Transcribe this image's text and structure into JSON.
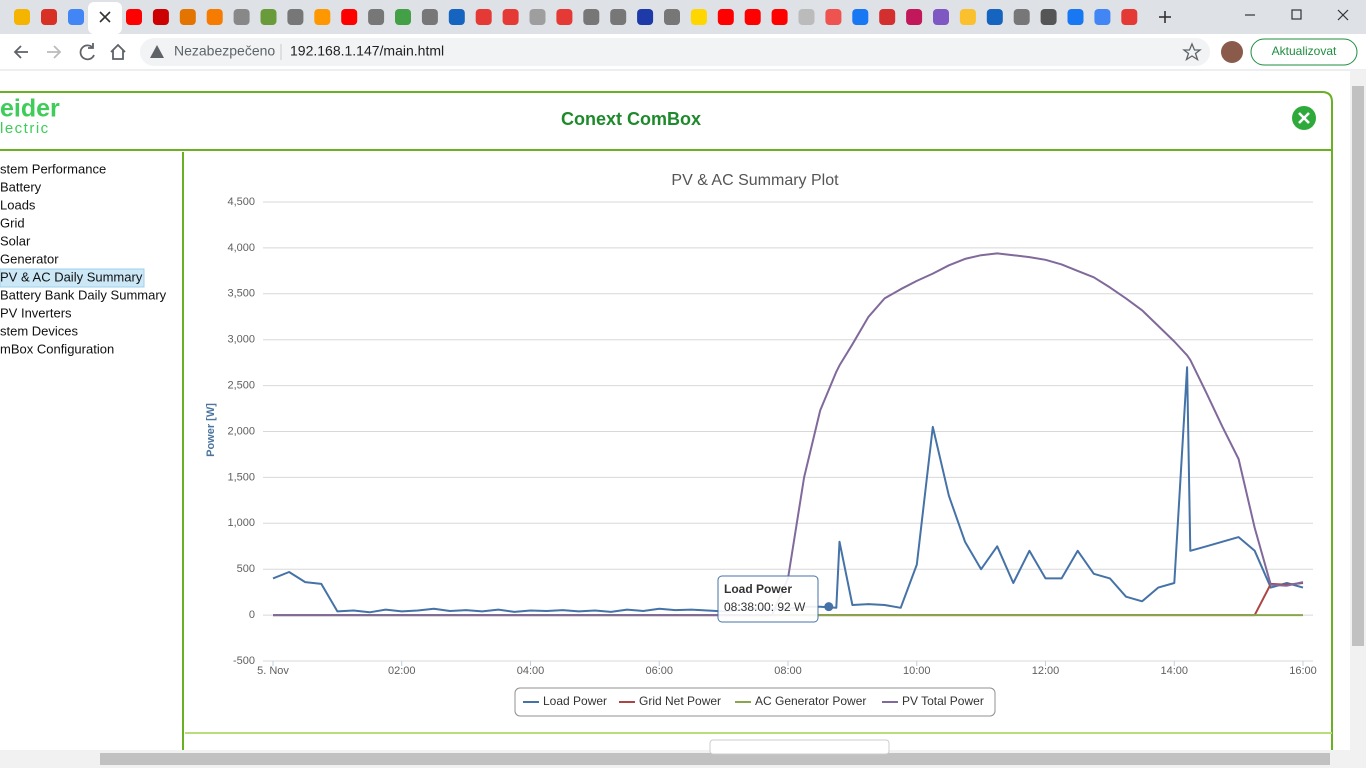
{
  "browser": {
    "security_label": "Nezabezpečeno",
    "url": "192.168.1.147/main.html",
    "update_button": "Aktualizovat"
  },
  "app": {
    "logo": [
      "eider",
      "lectric"
    ],
    "title": "Conext ComBox",
    "nav": [
      "stem Performance",
      "Battery",
      "Loads",
      "Grid",
      "Solar",
      "Generator",
      "PV & AC Daily Summary",
      "Battery Bank Daily Summary",
      "PV Inverters",
      "stem Devices",
      "mBox Configuration"
    ],
    "selected_nav": 6
  },
  "chart_data": {
    "type": "line",
    "title": "PV & AC Summary Plot",
    "y_label": "Power [W]",
    "x": [
      0,
      0.25,
      0.5,
      0.75,
      1,
      1.25,
      1.5,
      1.75,
      2,
      2.25,
      2.5,
      2.75,
      3,
      3.25,
      3.5,
      3.75,
      4,
      4.25,
      4.5,
      4.75,
      5,
      5.25,
      5.5,
      5.75,
      6,
      6.25,
      6.5,
      6.75,
      7,
      7.25,
      7.5,
      7.75,
      8,
      8.25,
      8.5,
      8.75,
      8.8,
      9,
      9.25,
      9.5,
      9.75,
      10,
      10.25,
      10.5,
      10.75,
      11,
      11.25,
      11.5,
      11.75,
      12,
      12.25,
      12.5,
      12.75,
      13,
      13.25,
      13.5,
      13.75,
      14,
      14.2,
      14.25,
      14.5,
      14.75,
      15,
      15.25,
      15.5,
      15.75,
      16
    ],
    "series": [
      {
        "name": "Load Power",
        "color": "#4572a7",
        "values": [
          400,
          470,
          360,
          340,
          40,
          50,
          30,
          60,
          40,
          50,
          70,
          45,
          55,
          40,
          60,
          35,
          50,
          45,
          55,
          40,
          50,
          35,
          60,
          45,
          70,
          55,
          60,
          50,
          40,
          55,
          70,
          60,
          70,
          90,
          92,
          80,
          800,
          110,
          120,
          110,
          80,
          550,
          2050,
          1300,
          800,
          500,
          750,
          350,
          700,
          400,
          400,
          700,
          450,
          400,
          200,
          150,
          300,
          350,
          2700,
          700,
          750,
          800,
          850,
          700,
          300,
          350,
          300
        ]
      },
      {
        "name": "Grid Net Power",
        "color": "#aa4643",
        "values": [
          0,
          0,
          0,
          0,
          0,
          0,
          0,
          0,
          0,
          0,
          0,
          0,
          0,
          0,
          0,
          0,
          0,
          0,
          0,
          0,
          0,
          0,
          0,
          0,
          0,
          0,
          0,
          0,
          0,
          0,
          0,
          0,
          0,
          0,
          0,
          0,
          0,
          0,
          0,
          0,
          0,
          0,
          0,
          0,
          0,
          0,
          0,
          0,
          0,
          0,
          0,
          0,
          0,
          0,
          0,
          0,
          0,
          0,
          0,
          0,
          0,
          0,
          0,
          0,
          340,
          330,
          350
        ]
      },
      {
        "name": "AC Generator Power",
        "color": "#89a54e",
        "values": [
          0,
          0,
          0,
          0,
          0,
          0,
          0,
          0,
          0,
          0,
          0,
          0,
          0,
          0,
          0,
          0,
          0,
          0,
          0,
          0,
          0,
          0,
          0,
          0,
          0,
          0,
          0,
          0,
          0,
          0,
          0,
          0,
          0,
          0,
          0,
          0,
          0,
          0,
          0,
          0,
          0,
          0,
          0,
          0,
          0,
          0,
          0,
          0,
          0,
          0,
          0,
          0,
          0,
          0,
          0,
          0,
          0,
          0,
          0,
          0,
          0,
          0,
          0,
          0,
          0,
          0,
          0
        ]
      },
      {
        "name": "PV Total Power",
        "color": "#80699b",
        "values": [
          0,
          0,
          0,
          0,
          0,
          0,
          0,
          0,
          0,
          0,
          0,
          0,
          0,
          0,
          0,
          0,
          0,
          0,
          0,
          0,
          0,
          0,
          0,
          0,
          0,
          0,
          0,
          0,
          0,
          0,
          0,
          0,
          400,
          1500,
          2230,
          2650,
          2720,
          2950,
          3250,
          3450,
          3550,
          3640,
          3720,
          3810,
          3880,
          3920,
          3940,
          3920,
          3900,
          3870,
          3820,
          3750,
          3680,
          3570,
          3450,
          3320,
          3150,
          2980,
          2830,
          2780,
          2420,
          2050,
          1700,
          950,
          330,
          320,
          360
        ]
      }
    ],
    "xlim": [
      0,
      16
    ],
    "xticks": [
      {
        "value": 0,
        "label": "5. Nov"
      },
      {
        "value": 2,
        "label": "02:00"
      },
      {
        "value": 4,
        "label": "04:00"
      },
      {
        "value": 6,
        "label": "06:00"
      },
      {
        "value": 8,
        "label": "08:00"
      },
      {
        "value": 10,
        "label": "10:00"
      },
      {
        "value": 12,
        "label": "12:00"
      },
      {
        "value": 14,
        "label": "14:00"
      },
      {
        "value": 16,
        "label": "16:00"
      }
    ],
    "ylim": [
      -500,
      4500
    ],
    "yticks": [
      -500,
      0,
      500,
      {
        "value": 1000,
        "label": "1,000"
      },
      {
        "value": 1500,
        "label": "1,500"
      },
      {
        "value": 2000,
        "label": "2,000"
      },
      {
        "value": 2500,
        "label": "2,500"
      },
      {
        "value": 3000,
        "label": "3,000"
      },
      {
        "value": 3500,
        "label": "3,500"
      },
      {
        "value": 4000,
        "label": "4,000"
      },
      {
        "value": 4500,
        "label": "4,500"
      }
    ],
    "grid": true,
    "legend": "bottom",
    "tooltip": {
      "series": "Load Power",
      "label": "08:38:00: 92 W",
      "x": 8.6333,
      "value": 92
    }
  }
}
